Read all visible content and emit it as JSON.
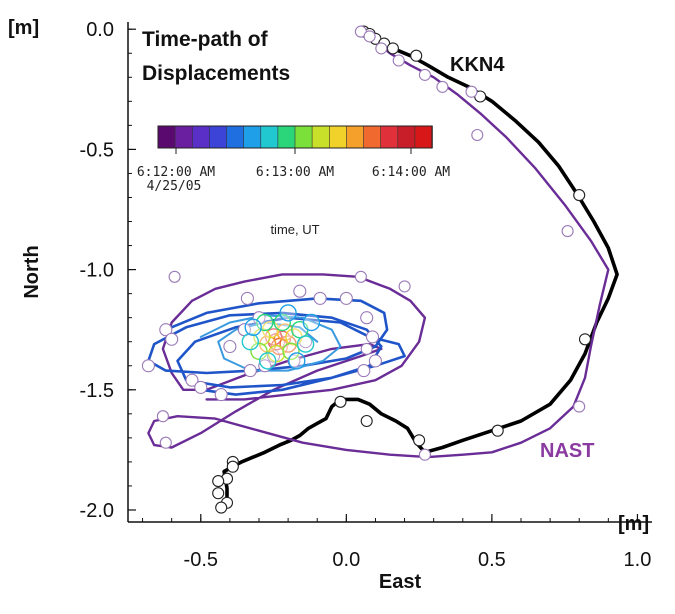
{
  "chart_data": {
    "type": "line",
    "title": "Time-path of Displacements",
    "title_lines": [
      "Time-path of",
      "Displacements"
    ],
    "xlabel": "East",
    "ylabel": "North",
    "x_unit": "[m]",
    "y_unit": "[m]",
    "xlim": [
      -0.75,
      1.05
    ],
    "ylim": [
      -2.05,
      0.03
    ],
    "x_ticks": [
      -0.5,
      0.0,
      0.5,
      1.0
    ],
    "x_tick_labels": [
      "-0.5",
      "0.0",
      "0.5",
      "1.0"
    ],
    "y_ticks": [
      0.0,
      -0.5,
      -1.0,
      -1.5,
      -2.0
    ],
    "y_tick_labels": [
      "0.0",
      "-0.5",
      "-1.0",
      "-1.5",
      "-2.0"
    ],
    "colorbar": {
      "label": "time, UT",
      "tick_labels": [
        "6:12:00 AM",
        "6:13:00 AM",
        "6:14:00 AM"
      ],
      "date_label": "4/25/05",
      "colors": [
        "#5a0a6e",
        "#6a1fa0",
        "#5a2fc8",
        "#3c44d8",
        "#1f6fe0",
        "#1f9fe8",
        "#22c8d0",
        "#2bd67a",
        "#7be03a",
        "#c8e02a",
        "#f0d22a",
        "#f5a02a",
        "#f06a30",
        "#e0303a",
        "#c81e2a",
        "#d81818"
      ]
    },
    "series": [
      {
        "name": "KKN4",
        "color": "#000000",
        "points": [
          [
            0.06,
            -0.01
          ],
          [
            0.09,
            -0.03
          ],
          [
            0.12,
            -0.06
          ],
          [
            0.16,
            -0.08
          ],
          [
            0.22,
            -0.11
          ],
          [
            0.28,
            -0.15
          ],
          [
            0.35,
            -0.2
          ],
          [
            0.42,
            -0.24
          ],
          [
            0.5,
            -0.3
          ],
          [
            0.58,
            -0.38
          ],
          [
            0.66,
            -0.47
          ],
          [
            0.73,
            -0.57
          ],
          [
            0.79,
            -0.68
          ],
          [
            0.85,
            -0.8
          ],
          [
            0.9,
            -0.91
          ],
          [
            0.93,
            -1.02
          ],
          [
            0.9,
            -1.12
          ],
          [
            0.86,
            -1.22
          ],
          [
            0.82,
            -1.35
          ],
          [
            0.77,
            -1.46
          ],
          [
            0.7,
            -1.56
          ],
          [
            0.6,
            -1.63
          ],
          [
            0.5,
            -1.67
          ],
          [
            0.4,
            -1.71
          ],
          [
            0.33,
            -1.74
          ],
          [
            0.27,
            -1.76
          ],
          [
            0.24,
            -1.72
          ],
          [
            0.21,
            -1.66
          ],
          [
            0.17,
            -1.63
          ],
          [
            0.12,
            -1.6
          ],
          [
            0.08,
            -1.56
          ],
          [
            0.04,
            -1.54
          ],
          [
            -0.02,
            -1.54
          ],
          [
            -0.05,
            -1.57
          ],
          [
            -0.07,
            -1.62
          ],
          [
            -0.1,
            -1.64
          ],
          [
            -0.13,
            -1.66
          ],
          [
            -0.16,
            -1.69
          ],
          [
            -0.19,
            -1.71
          ],
          [
            -0.23,
            -1.73
          ],
          [
            -0.28,
            -1.76
          ],
          [
            -0.32,
            -1.78
          ],
          [
            -0.36,
            -1.8
          ],
          [
            -0.39,
            -1.82
          ],
          [
            -0.42,
            -1.84
          ],
          [
            -0.41,
            -1.91
          ],
          [
            -0.41,
            -1.96
          ],
          [
            -0.42,
            -2.0
          ]
        ],
        "marker_points": [
          [
            0.06,
            -0.01
          ],
          [
            0.08,
            -0.02
          ],
          [
            0.1,
            -0.04
          ],
          [
            0.13,
            -0.06
          ],
          [
            0.16,
            -0.08
          ],
          [
            0.24,
            -0.11
          ],
          [
            0.46,
            -0.28
          ],
          [
            0.8,
            -0.69
          ],
          [
            0.82,
            -1.29
          ],
          [
            0.52,
            -1.67
          ],
          [
            0.25,
            -1.71
          ],
          [
            0.07,
            -1.63
          ],
          [
            -0.02,
            -1.55
          ],
          [
            -0.39,
            -1.8
          ],
          [
            -0.39,
            -1.82
          ],
          [
            -0.41,
            -1.87
          ],
          [
            -0.44,
            -1.88
          ],
          [
            -0.44,
            -1.93
          ],
          [
            -0.41,
            -1.97
          ],
          [
            -0.43,
            -1.99
          ]
        ]
      },
      {
        "name": "NAST",
        "color": "#6a2c96",
        "points": [
          [
            0.05,
            -0.01
          ],
          [
            0.1,
            -0.05
          ],
          [
            0.15,
            -0.1
          ],
          [
            0.22,
            -0.15
          ],
          [
            0.3,
            -0.2
          ],
          [
            0.38,
            -0.27
          ],
          [
            0.46,
            -0.35
          ],
          [
            0.55,
            -0.45
          ],
          [
            0.65,
            -0.58
          ],
          [
            0.75,
            -0.73
          ],
          [
            0.84,
            -0.88
          ],
          [
            0.9,
            -1.0
          ],
          [
            0.87,
            -1.15
          ],
          [
            0.84,
            -1.32
          ],
          [
            0.82,
            -1.45
          ],
          [
            0.78,
            -1.57
          ],
          [
            0.7,
            -1.66
          ],
          [
            0.6,
            -1.72
          ],
          [
            0.5,
            -1.76
          ],
          [
            0.4,
            -1.77
          ],
          [
            0.28,
            -1.78
          ],
          [
            0.15,
            -1.77
          ],
          [
            0.0,
            -1.75
          ],
          [
            -0.15,
            -1.72
          ],
          [
            -0.3,
            -1.67
          ],
          [
            -0.45,
            -1.62
          ],
          [
            -0.58,
            -1.61
          ],
          [
            -0.66,
            -1.63
          ],
          [
            -0.68,
            -1.68
          ],
          [
            -0.66,
            -1.73
          ],
          [
            -0.6,
            -1.74
          ],
          [
            -0.5,
            -1.68
          ],
          [
            -0.38,
            -1.59
          ],
          [
            -0.25,
            -1.5
          ],
          [
            -0.1,
            -1.42
          ],
          [
            0.05,
            -1.36
          ],
          [
            0.12,
            -1.33
          ],
          [
            0.08,
            -1.31
          ],
          [
            -0.05,
            -1.33
          ],
          [
            -0.2,
            -1.38
          ],
          [
            -0.35,
            -1.44
          ],
          [
            -0.48,
            -1.5
          ],
          [
            -0.56,
            -1.5
          ],
          [
            -0.6,
            -1.43
          ],
          [
            -0.63,
            -1.33
          ],
          [
            -0.6,
            -1.22
          ],
          [
            -0.53,
            -1.13
          ],
          [
            -0.45,
            -1.08
          ],
          [
            -0.35,
            -1.05
          ],
          [
            -0.22,
            -1.02
          ],
          [
            -0.08,
            -1.02
          ],
          [
            0.04,
            -1.03
          ],
          [
            0.15,
            -1.08
          ],
          [
            0.22,
            -1.13
          ],
          [
            0.27,
            -1.2
          ],
          [
            0.25,
            -1.3
          ],
          [
            0.19,
            -1.4
          ],
          [
            0.1,
            -1.46
          ],
          [
            -0.05,
            -1.5
          ],
          [
            -0.2,
            -1.52
          ],
          [
            -0.35,
            -1.54
          ],
          [
            -0.48,
            -1.54
          ]
        ],
        "marker_points": [
          [
            0.05,
            -0.01
          ],
          [
            0.08,
            -0.03
          ],
          [
            0.12,
            -0.08
          ],
          [
            0.18,
            -0.13
          ],
          [
            0.27,
            -0.19
          ],
          [
            0.33,
            -0.24
          ],
          [
            0.43,
            -0.26
          ],
          [
            0.45,
            -0.44
          ],
          [
            0.76,
            -0.84
          ],
          [
            0.8,
            -1.57
          ],
          [
            0.27,
            -1.77
          ],
          [
            -0.62,
            -1.72
          ],
          [
            -0.63,
            -1.61
          ],
          [
            0.07,
            -1.33
          ],
          [
            -0.59,
            -1.03
          ],
          [
            0.05,
            -1.03
          ],
          [
            0.2,
            -1.07
          ]
        ]
      },
      {
        "name": "",
        "color": "#1f55c8",
        "points": [
          [
            -0.62,
            -1.25
          ],
          [
            -0.48,
            -1.18
          ],
          [
            -0.3,
            -1.14
          ],
          [
            -0.1,
            -1.12
          ],
          [
            0.05,
            -1.13
          ],
          [
            0.13,
            -1.18
          ],
          [
            0.14,
            -1.25
          ],
          [
            0.1,
            -1.32
          ],
          [
            0.0,
            -1.37
          ],
          [
            -0.15,
            -1.4
          ],
          [
            -0.32,
            -1.42
          ],
          [
            -0.48,
            -1.43
          ],
          [
            -0.62,
            -1.42
          ],
          [
            -0.68,
            -1.38
          ],
          [
            -0.66,
            -1.31
          ],
          [
            -0.55,
            -1.24
          ],
          [
            -0.4,
            -1.19
          ],
          [
            -0.22,
            -1.18
          ],
          [
            -0.05,
            -1.2
          ],
          [
            0.07,
            -1.25
          ],
          [
            0.12,
            -1.32
          ],
          [
            0.08,
            -1.4
          ],
          [
            -0.05,
            -1.45
          ],
          [
            -0.22,
            -1.48
          ],
          [
            -0.4,
            -1.49
          ],
          [
            -0.55,
            -1.46
          ],
          [
            -0.58,
            -1.38
          ],
          [
            -0.52,
            -1.3
          ],
          [
            -0.38,
            -1.24
          ],
          [
            -0.2,
            -1.2
          ],
          [
            -0.02,
            -1.22
          ],
          [
            0.08,
            -1.28
          ],
          [
            0.18,
            -1.31
          ],
          [
            0.2,
            -1.36
          ],
          [
            0.1,
            -1.4
          ],
          [
            -0.05,
            -1.45
          ],
          [
            -0.22,
            -1.5
          ],
          [
            -0.38,
            -1.52
          ],
          [
            -0.5,
            -1.5
          ]
        ],
        "marker_points": [
          [
            -0.62,
            -1.25
          ],
          [
            -0.6,
            -1.29
          ],
          [
            -0.68,
            -1.4
          ],
          [
            -0.53,
            -1.46
          ],
          [
            -0.5,
            -1.49
          ],
          [
            -0.43,
            -1.52
          ],
          [
            -0.34,
            -1.12
          ],
          [
            -0.16,
            -1.09
          ],
          [
            -0.09,
            -1.12
          ],
          [
            0.0,
            -1.12
          ],
          [
            0.07,
            -1.2
          ],
          [
            0.09,
            -1.28
          ],
          [
            0.1,
            -1.38
          ],
          [
            0.06,
            -1.42
          ]
        ]
      },
      {
        "name": "",
        "color": "#3a9ae0",
        "points": [
          [
            -0.5,
            -1.28
          ],
          [
            -0.4,
            -1.22
          ],
          [
            -0.28,
            -1.19
          ],
          [
            -0.15,
            -1.2
          ],
          [
            -0.05,
            -1.25
          ],
          [
            -0.02,
            -1.32
          ],
          [
            -0.08,
            -1.38
          ],
          [
            -0.2,
            -1.42
          ],
          [
            -0.33,
            -1.42
          ],
          [
            -0.42,
            -1.37
          ],
          [
            -0.44,
            -1.3
          ],
          [
            -0.38,
            -1.25
          ],
          [
            -0.28,
            -1.22
          ],
          [
            -0.16,
            -1.24
          ],
          [
            -0.1,
            -1.3
          ]
        ],
        "marker_points": [
          [
            -0.4,
            -1.32
          ],
          [
            -0.35,
            -1.25
          ],
          [
            -0.3,
            -1.2
          ],
          [
            -0.25,
            -1.36
          ],
          [
            -0.28,
            -1.4
          ],
          [
            -0.33,
            -1.42
          ],
          [
            -0.18,
            -1.38
          ],
          [
            -0.14,
            -1.3
          ]
        ]
      }
    ],
    "center_cluster": [
      {
        "x": -0.24,
        "y": -1.3,
        "color": "#c81e2a"
      },
      {
        "x": -0.22,
        "y": -1.29,
        "color": "#d81818"
      },
      {
        "x": -0.25,
        "y": -1.28,
        "color": "#e0303a"
      },
      {
        "x": -0.23,
        "y": -1.32,
        "color": "#f06a30"
      },
      {
        "x": -0.2,
        "y": -1.31,
        "color": "#f06a30"
      },
      {
        "x": -0.27,
        "y": -1.31,
        "color": "#f5a02a"
      },
      {
        "x": -0.21,
        "y": -1.26,
        "color": "#f5a02a"
      },
      {
        "x": -0.26,
        "y": -1.25,
        "color": "#f0d22a"
      },
      {
        "x": -0.18,
        "y": -1.28,
        "color": "#f0d22a"
      },
      {
        "x": -0.29,
        "y": -1.28,
        "color": "#c8e02a"
      },
      {
        "x": -0.24,
        "y": -1.35,
        "color": "#c8e02a"
      },
      {
        "x": -0.19,
        "y": -1.34,
        "color": "#7be03a"
      },
      {
        "x": -0.3,
        "y": -1.34,
        "color": "#7be03a"
      },
      {
        "x": -0.16,
        "y": -1.25,
        "color": "#2bd67a"
      },
      {
        "x": -0.28,
        "y": -1.22,
        "color": "#2bd67a"
      },
      {
        "x": -0.22,
        "y": -1.22,
        "color": "#2bd67a"
      },
      {
        "x": -0.14,
        "y": -1.31,
        "color": "#22c8d0"
      },
      {
        "x": -0.33,
        "y": -1.3,
        "color": "#22c8d0"
      },
      {
        "x": -0.27,
        "y": -1.38,
        "color": "#22c8d0"
      },
      {
        "x": -0.17,
        "y": -1.38,
        "color": "#1f9fe8"
      },
      {
        "x": -0.32,
        "y": -1.24,
        "color": "#1f9fe8"
      },
      {
        "x": -0.2,
        "y": -1.18,
        "color": "#1f9fe8"
      },
      {
        "x": -0.12,
        "y": -1.22,
        "color": "#1f9fe8"
      }
    ],
    "grid": false,
    "legend_placement": "none"
  }
}
